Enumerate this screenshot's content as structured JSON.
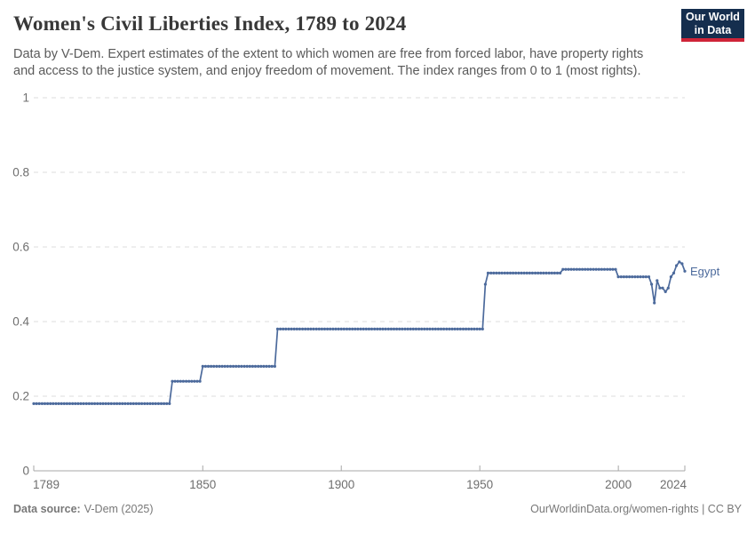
{
  "header": {
    "title": "Women's Civil Liberties Index, 1789 to 2024",
    "subtitle": "Data by V-Dem. Expert estimates of the extent to which women are free from forced labor, have property rights\nand access to the justice system, and enjoy freedom of movement. The index ranges from 0 to 1 (most rights)."
  },
  "logo": {
    "line1": "Our World",
    "line2": "in Data",
    "bg_color": "#152e4e",
    "accent_color": "#cf2438"
  },
  "footer": {
    "source_label": "Data source:",
    "source_value": "V-Dem (2025)",
    "link": "OurWorldinData.org/women-rights | CC BY"
  },
  "chart_data": {
    "type": "line",
    "title": "Women's Civil Liberties Index, 1789 to 2024",
    "entity": "Egypt",
    "line_color": "#4c6a9c",
    "text_color": "#6e6e6e",
    "xlabel": "",
    "ylabel": "",
    "xlim": [
      1789,
      2024
    ],
    "ylim": [
      0,
      1
    ],
    "x_ticks": [
      1789,
      1850,
      1900,
      1950,
      2000,
      2024
    ],
    "y_ticks": [
      0,
      0.2,
      0.4,
      0.6,
      0.8,
      1
    ],
    "grid": "horizontal-dashed",
    "legend_position": "end-of-line-label",
    "interpolation": "annual points, value held from each breakpoint year until the next",
    "series": [
      {
        "name": "Egypt",
        "breakpoints": [
          [
            1789,
            0.18
          ],
          [
            1839,
            0.24
          ],
          [
            1850,
            0.28
          ],
          [
            1877,
            0.38
          ],
          [
            1952,
            0.5
          ],
          [
            1953,
            0.53
          ],
          [
            1980,
            0.54
          ],
          [
            2000,
            0.52
          ],
          [
            2012,
            0.5
          ],
          [
            2013,
            0.45
          ],
          [
            2014,
            0.51
          ],
          [
            2015,
            0.49
          ],
          [
            2017,
            0.48
          ],
          [
            2018,
            0.49
          ],
          [
            2019,
            0.52
          ],
          [
            2020,
            0.53
          ],
          [
            2021,
            0.55
          ],
          [
            2022,
            0.56
          ],
          [
            2023,
            0.555
          ],
          [
            2024,
            0.535
          ]
        ]
      }
    ]
  }
}
